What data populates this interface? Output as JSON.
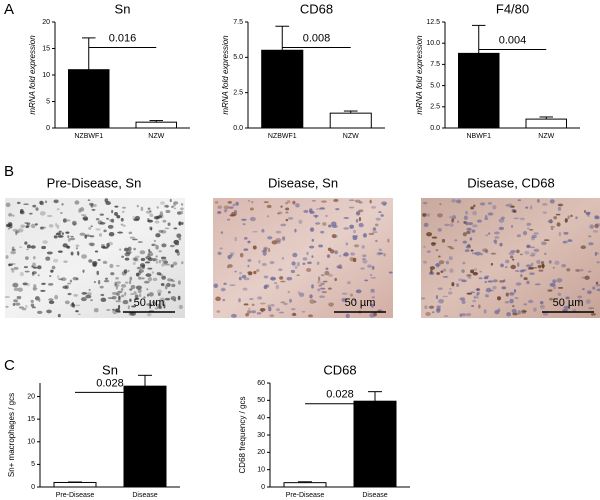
{
  "panel_labels": [
    "A",
    "B",
    "C"
  ],
  "images": [
    {
      "title": "Pre-Disease, Sn",
      "scale_bar": "50 µm"
    },
    {
      "title": "Disease, Sn",
      "scale_bar": "50 µm"
    },
    {
      "title": "Disease, CD68",
      "scale_bar": "50 µm"
    }
  ],
  "chart_data": [
    {
      "type": "bar",
      "title": "Sn",
      "ylabel": "mRNA fold expression",
      "categories": [
        "NZBWF1",
        "NZW"
      ],
      "values": [
        11,
        1.1
      ],
      "errors": [
        6,
        0.3
      ],
      "colors": [
        "#000000",
        "#ffffff"
      ],
      "annotation": "0.016",
      "ylim": [
        0,
        20
      ],
      "yticks": [
        0,
        5,
        10,
        15,
        20
      ]
    },
    {
      "type": "bar",
      "title": "CD68",
      "ylabel": "mRNA fold expression",
      "categories": [
        "NZBWF1",
        "NZW"
      ],
      "values": [
        5.5,
        1.05
      ],
      "errors": [
        1.7,
        0.15
      ],
      "colors": [
        "#000000",
        "#ffffff"
      ],
      "annotation": "0.008",
      "ylim": [
        0,
        7.5
      ],
      "yticks": [
        {
          "value": 0,
          "label": "0.0"
        },
        {
          "value": 2.5,
          "label": "2.5"
        },
        {
          "value": 5,
          "label": "5.0"
        },
        {
          "value": 7.5,
          "label": "7.5"
        }
      ]
    },
    {
      "type": "bar",
      "title": "F4/80",
      "ylabel": "mRNA fold expression",
      "categories": [
        "NBWF1",
        "NZW"
      ],
      "values": [
        8.8,
        1.05
      ],
      "errors": [
        3.3,
        0.25
      ],
      "colors": [
        "#000000",
        "#ffffff"
      ],
      "annotation": "0.004",
      "ylim": [
        0,
        12.5
      ],
      "yticks": [
        {
          "value": 0,
          "label": "0.0"
        },
        {
          "value": 2.5,
          "label": "2.5"
        },
        {
          "value": 5,
          "label": "5.0"
        },
        {
          "value": 7.5,
          "label": "7.5"
        },
        {
          "value": 10,
          "label": "10.0"
        },
        {
          "value": 12.5,
          "label": "12.5"
        }
      ]
    },
    {
      "type": "bar",
      "title": "Sn",
      "ylabel": "Sn+ macrophages / gcs",
      "categories": [
        "Pre-Disease",
        "Disease"
      ],
      "values": [
        1,
        22.3
      ],
      "errors": [
        0.1,
        2.4
      ],
      "colors": [
        "#ffffff",
        "#000000"
      ],
      "annotation": "0.028",
      "ylim": [
        0,
        23
      ],
      "yticks": [
        0,
        5,
        10,
        15,
        20
      ]
    },
    {
      "type": "bar",
      "title": "CD68",
      "ylabel": "CD68 frequency / gcs",
      "categories": [
        "Pre-Disease",
        "Disease"
      ],
      "values": [
        2.5,
        49.5
      ],
      "errors": [
        0.5,
        5.5
      ],
      "colors": [
        "#ffffff",
        "#000000"
      ],
      "annotation": "0.028",
      "ylim": [
        0,
        60
      ],
      "yticks": [
        0,
        10,
        20,
        30,
        40,
        50,
        60
      ]
    }
  ]
}
